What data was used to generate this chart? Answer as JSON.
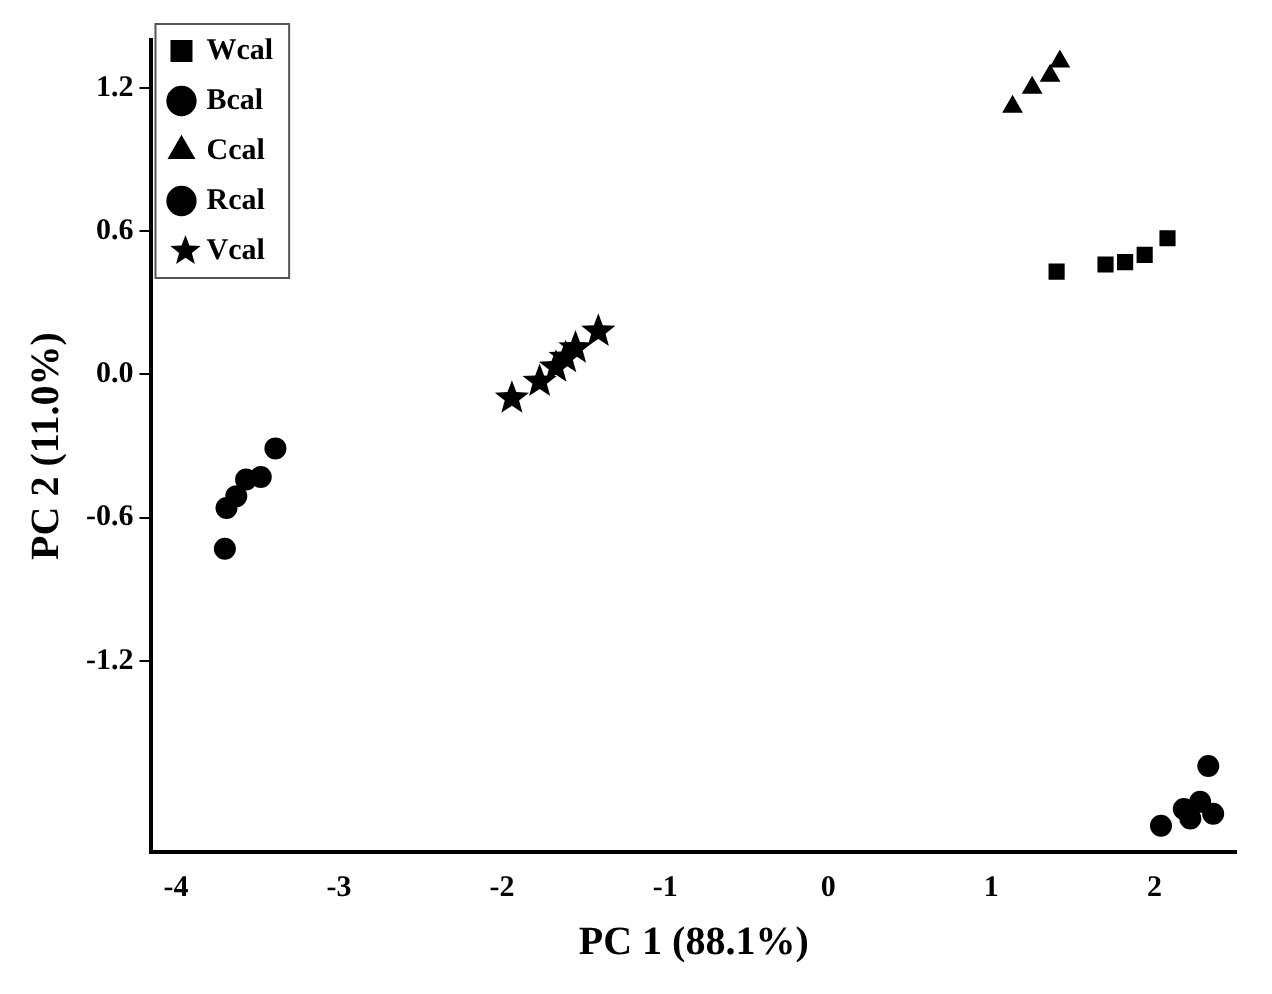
{
  "chart_data": {
    "type": "scatter",
    "xlabel": "PC 1 (88.1%)",
    "ylabel": "PC 2 (11.0%)",
    "xlim": [
      -4.15,
      2.5
    ],
    "ylim": [
      -2.0,
      1.4
    ],
    "xticks": [
      -4,
      -3,
      -2,
      -1,
      0,
      1,
      2
    ],
    "yticks": [
      {
        "value": -1.2,
        "label": "-1.2"
      },
      {
        "value": -0.6,
        "label": "-0.6"
      },
      {
        "value": 0,
        "label": "0.0"
      },
      {
        "value": 0.6,
        "label": "0.6"
      },
      {
        "value": 1.2,
        "label": "1.2"
      }
    ],
    "grid": false,
    "legend": "top left",
    "series": [
      {
        "name": "Wcal",
        "color": "#000000",
        "marker": "square",
        "x": [
          1.4,
          1.7,
          1.82,
          1.94,
          2.08
        ],
        "values": [
          0.43,
          0.46,
          0.47,
          0.5,
          0.57
        ]
      },
      {
        "name": "Bcal",
        "color": "#000000",
        "marker": "circle",
        "x": [
          2.04,
          2.18,
          2.22,
          2.28,
          2.33,
          2.36
        ],
        "values": [
          -1.89,
          -1.82,
          -1.86,
          -1.79,
          -1.64,
          -1.84
        ]
      },
      {
        "name": "Ccal",
        "color": "#000000",
        "marker": "triangle",
        "x": [
          1.13,
          1.25,
          1.36,
          1.42
        ],
        "values": [
          1.12,
          1.2,
          1.25,
          1.31
        ]
      },
      {
        "name": "Rcal",
        "color": "#000000",
        "marker": "circle",
        "x": [
          -3.7,
          -3.69,
          -3.63,
          -3.57,
          -3.48,
          -3.39
        ],
        "values": [
          -0.73,
          -0.56,
          -0.51,
          -0.44,
          -0.43,
          -0.31
        ]
      },
      {
        "name": "Vcal",
        "color": "#000000",
        "marker": "star",
        "x": [
          -1.94,
          -1.77,
          -1.67,
          -1.61,
          -1.55,
          -1.41
        ],
        "values": [
          -0.1,
          -0.03,
          0.03,
          0.07,
          0.11,
          0.18
        ]
      }
    ]
  }
}
